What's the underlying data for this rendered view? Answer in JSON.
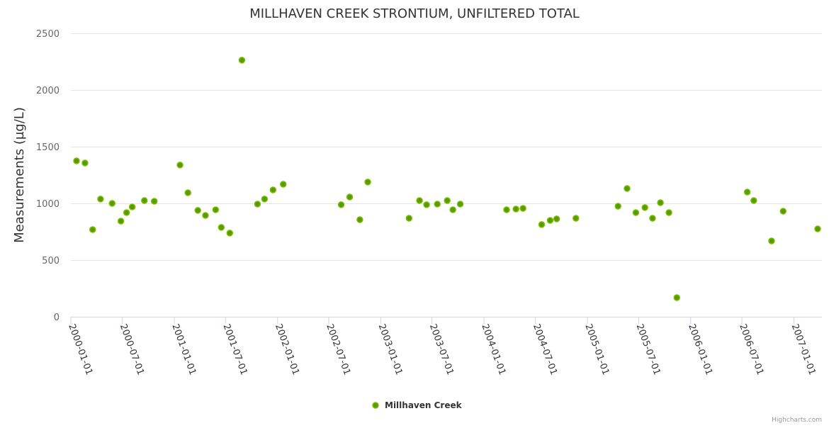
{
  "chart_data": {
    "type": "scatter",
    "title": "MILLHAVEN CREEK STRONTIUM, UNFILTERED TOTAL",
    "xlabel": "",
    "ylabel": "Measurements (µg/L)",
    "ylim": [
      0,
      2500
    ],
    "xlim": [
      "2000-01-01",
      "2007-04-10"
    ],
    "yticks": [
      0,
      500,
      1000,
      1500,
      2000,
      2500
    ],
    "xticks": [
      "2000-01-01",
      "2000-07-01",
      "2001-01-01",
      "2001-07-01",
      "2002-01-01",
      "2002-07-01",
      "2003-01-01",
      "2003-07-01",
      "2004-01-01",
      "2004-07-01",
      "2005-01-01",
      "2005-07-01",
      "2006-01-01",
      "2006-07-01",
      "2007-01-01"
    ],
    "grid": true,
    "legend_position": "bottom-center",
    "series": [
      {
        "name": "Millhaven Creek",
        "color": "#6aaa00",
        "points": [
          [
            "2000-01-21",
            1375
          ],
          [
            "2000-02-20",
            1356
          ],
          [
            "2000-03-18",
            769
          ],
          [
            "2000-04-15",
            1038
          ],
          [
            "2000-05-26",
            1000
          ],
          [
            "2000-06-26",
            844
          ],
          [
            "2000-07-16",
            919
          ],
          [
            "2000-08-05",
            969
          ],
          [
            "2000-09-17",
            1025
          ],
          [
            "2000-10-22",
            1019
          ],
          [
            "2001-01-21",
            1338
          ],
          [
            "2001-02-18",
            1094
          ],
          [
            "2001-03-25",
            938
          ],
          [
            "2001-04-21",
            894
          ],
          [
            "2001-05-27",
            944
          ],
          [
            "2001-06-16",
            788
          ],
          [
            "2001-07-16",
            738
          ],
          [
            "2001-08-28",
            2263
          ],
          [
            "2001-10-22",
            994
          ],
          [
            "2001-11-16",
            1038
          ],
          [
            "2001-12-16",
            1119
          ],
          [
            "2002-01-21",
            1169
          ],
          [
            "2002-08-14",
            988
          ],
          [
            "2002-09-13",
            1056
          ],
          [
            "2002-10-19",
            856
          ],
          [
            "2002-11-16",
            1188
          ],
          [
            "2003-04-11",
            869
          ],
          [
            "2003-05-18",
            1025
          ],
          [
            "2003-06-12",
            988
          ],
          [
            "2003-07-20",
            994
          ],
          [
            "2003-08-24",
            1025
          ],
          [
            "2003-09-13",
            944
          ],
          [
            "2003-10-09",
            994
          ],
          [
            "2004-03-21",
            944
          ],
          [
            "2004-04-23",
            950
          ],
          [
            "2004-05-18",
            956
          ],
          [
            "2004-07-23",
            813
          ],
          [
            "2004-08-22",
            850
          ],
          [
            "2004-09-14",
            863
          ],
          [
            "2004-11-21",
            869
          ],
          [
            "2005-04-19",
            975
          ],
          [
            "2005-05-21",
            1131
          ],
          [
            "2005-06-21",
            919
          ],
          [
            "2005-07-23",
            963
          ],
          [
            "2005-08-19",
            869
          ],
          [
            "2005-09-16",
            1006
          ],
          [
            "2005-10-16",
            919
          ],
          [
            "2005-11-13",
            169
          ],
          [
            "2006-07-20",
            1100
          ],
          [
            "2006-08-12",
            1025
          ],
          [
            "2006-10-14",
            669
          ],
          [
            "2006-11-24",
            931
          ],
          [
            "2007-03-26",
            775
          ]
        ]
      }
    ],
    "credits": "Highcharts.com"
  }
}
